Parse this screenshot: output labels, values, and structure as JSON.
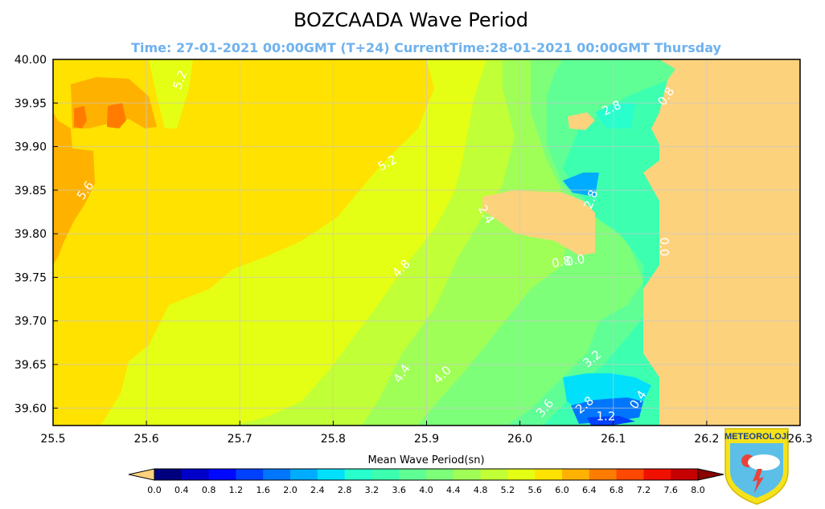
{
  "chart_data": {
    "type": "heatmap",
    "title": "BOZCAADA Wave Period",
    "subtitle": "Time: 27-01-2021 00:00GMT (T+24)  CurrentTime:28-01-2021 00:00GMT Thursday",
    "xlim": [
      25.5,
      26.3
    ],
    "ylim": [
      39.58,
      40.0
    ],
    "x_ticks": [
      "25.5",
      "25.6",
      "25.7",
      "25.8",
      "25.9",
      "26.0",
      "26.1",
      "26.2",
      "26.3"
    ],
    "y_ticks": [
      "40.00",
      "39.95",
      "39.90",
      "39.85",
      "39.80",
      "39.75",
      "39.70",
      "39.65",
      "39.60"
    ],
    "grid": true,
    "colorbar": {
      "label": "Mean Wave Period(sn)",
      "ticks": [
        "0.0",
        "0.4",
        "0.8",
        "1.2",
        "1.6",
        "2.0",
        "2.4",
        "2.8",
        "3.2",
        "3.6",
        "4.0",
        "4.4",
        "4.8",
        "5.2",
        "5.6",
        "6.0",
        "6.4",
        "6.8",
        "7.2",
        "7.6",
        "8.0"
      ],
      "colors": [
        "#00007f",
        "#0000c8",
        "#0008ff",
        "#0040ff",
        "#0076ff",
        "#00acff",
        "#00e0fb",
        "#29ffcd",
        "#3cffb0",
        "#5fff96",
        "#7dff7a",
        "#a0ff57",
        "#c1ff36",
        "#e4ff13",
        "#ffe200",
        "#ffb100",
        "#ff7c00",
        "#ff4800",
        "#f01000",
        "#c60000",
        "#8b0000"
      ],
      "under_color": "#ffd27f",
      "over_color": "#8b0000"
    },
    "land_color": "#fdd27d",
    "contour_labels": [
      {
        "text": "5.2",
        "lon": 25.64,
        "lat": 39.975,
        "rot": -70
      },
      {
        "text": "5.6",
        "lon": 25.538,
        "lat": 39.847,
        "rot": -55
      },
      {
        "text": "5.2",
        "lon": 25.86,
        "lat": 39.877,
        "rot": -28
      },
      {
        "text": "4.8",
        "lon": 25.876,
        "lat": 39.757,
        "rot": -45
      },
      {
        "text": "4.4",
        "lon": 25.877,
        "lat": 39.637,
        "rot": -55
      },
      {
        "text": "4.0",
        "lon": 25.92,
        "lat": 39.635,
        "rot": -45
      },
      {
        "text": "3.6",
        "lon": 26.03,
        "lat": 39.597,
        "rot": -50
      },
      {
        "text": "2.8",
        "lon": 26.072,
        "lat": 39.6,
        "rot": -40
      },
      {
        "text": "3.2",
        "lon": 26.08,
        "lat": 39.653,
        "rot": -40
      },
      {
        "text": "1.2",
        "lon": 26.092,
        "lat": 39.586,
        "rot": 0
      },
      {
        "text": "0.4",
        "lon": 26.13,
        "lat": 39.607,
        "rot": -55
      },
      {
        "text": "0.8",
        "lon": 26.16,
        "lat": 39.955,
        "rot": -55
      },
      {
        "text": "2.8",
        "lon": 26.1,
        "lat": 39.94,
        "rot": -25
      },
      {
        "text": "2.8",
        "lon": 26.08,
        "lat": 39.838,
        "rot": -70
      },
      {
        "text": "0.8",
        "lon": 26.045,
        "lat": 39.763,
        "rot": -10
      },
      {
        "text": "0.0",
        "lon": 26.06,
        "lat": 39.765,
        "rot": -10
      },
      {
        "text": "0.0",
        "lon": 26.15,
        "lat": 39.785,
        "rot": 90
      },
      {
        "text": "2.4",
        "lon": 25.96,
        "lat": 39.82,
        "rot": 60
      }
    ]
  },
  "logo": {
    "text": "METEOROLOJİ",
    "shield_color": "#f5e21b",
    "sky_color": "#5bbfe8"
  }
}
